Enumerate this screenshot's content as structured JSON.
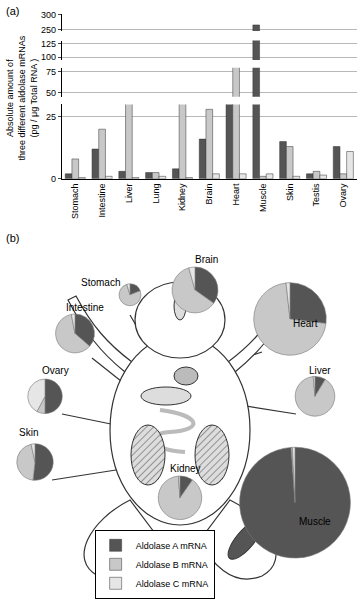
{
  "chart_data": [
    {
      "type": "bar",
      "title": "(a)",
      "ylabel": "Absolute amount of\nthree different aldolase mRNAs\n(pg / μg Total RNA )",
      "categories": [
        "Stomach",
        "Intestine",
        "Liver",
        "Lung",
        "Kidney",
        "Brain",
        "Heart",
        "Muscle",
        "Skin",
        "Testis",
        "Ovary"
      ],
      "series": [
        {
          "name": "Aldolase A mRNA",
          "color": "#555555",
          "values": [
            2,
            12,
            3,
            2.5,
            4,
            16,
            31,
            265,
            15,
            2,
            13
          ]
        },
        {
          "name": "Aldolase B mRNA",
          "color": "#c8c8c8",
          "values": [
            8,
            20,
            31,
            2.5,
            37,
            28,
            82,
            1,
            13,
            3,
            2
          ]
        },
        {
          "name": "Aldolase C mRNA",
          "color": "#e6e6e6",
          "values": [
            0.5,
            1,
            0.5,
            1,
            0.5,
            2,
            2,
            2,
            1,
            1.5,
            11
          ]
        }
      ],
      "y_segments": [
        [
          0,
          30
        ],
        [
          45,
          80
        ],
        [
          95,
          130
        ],
        [
          245,
          300
        ]
      ],
      "yticks": [
        0,
        25,
        50,
        75,
        100,
        125,
        250,
        300
      ],
      "grid": true,
      "legend": "bottom"
    },
    {
      "type": "pie",
      "title": "(b)",
      "pies": [
        {
          "name": "Stomach",
          "values": [
            2,
            8,
            0.5
          ]
        },
        {
          "name": "Brain",
          "values": [
            16,
            28,
            2
          ]
        },
        {
          "name": "Heart",
          "values": [
            31,
            82,
            2
          ]
        },
        {
          "name": "Intestine",
          "values": [
            12,
            20,
            1
          ]
        },
        {
          "name": "Liver",
          "values": [
            3,
            31,
            0.5
          ]
        },
        {
          "name": "Ovary",
          "values": [
            13,
            2,
            11
          ]
        },
        {
          "name": "Skin",
          "values": [
            15,
            13,
            1
          ]
        },
        {
          "name": "Kidney",
          "values": [
            4,
            37,
            0.5
          ]
        },
        {
          "name": "Muscle",
          "values": [
            265,
            1,
            2
          ]
        }
      ]
    }
  ]
}
